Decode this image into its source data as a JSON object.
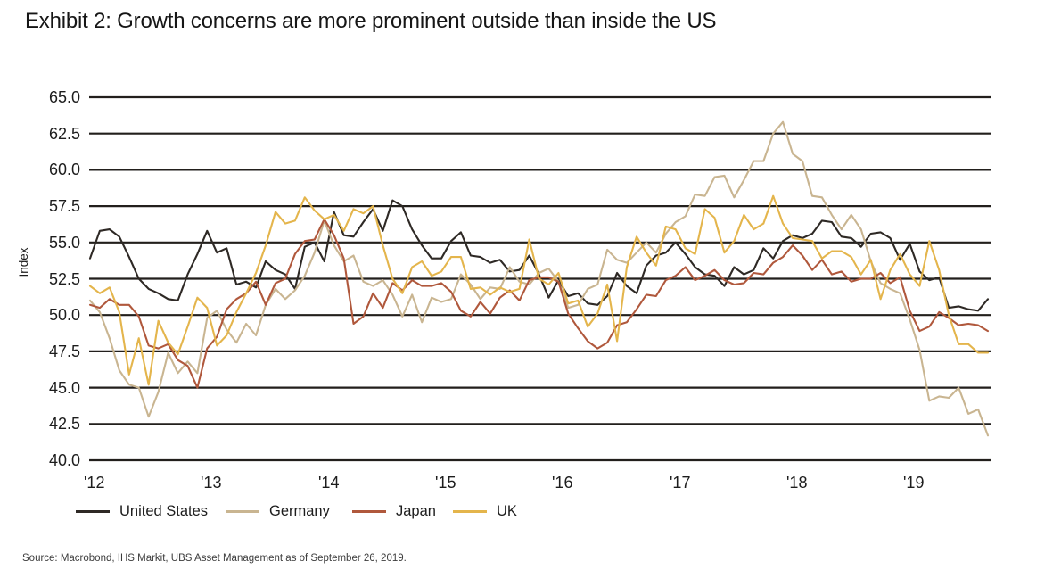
{
  "title": "Exhibit 2: Growth concerns are more prominent outside than inside the US",
  "source": "Source: Macrobond, IHS Markit, UBS Asset Management as of September 26, 2019.",
  "chart_data": {
    "type": "line",
    "title": "Exhibit 2: Growth concerns are more prominent outside than inside the US",
    "ylabel": "Index",
    "xlabel": "",
    "ylim": [
      40.0,
      65.0
    ],
    "yticks": [
      65.0,
      62.5,
      60.0,
      57.5,
      55.0,
      52.5,
      50.0,
      47.5,
      45.0,
      42.5,
      40.0
    ],
    "xtick_labels": [
      "'12",
      "'13",
      "'14",
      "'15",
      "'16",
      "'17",
      "'18",
      "'19"
    ],
    "x_frequency": "monthly, Jan 2012 - Sep 2019",
    "grid": "horizontal gridlines on",
    "gridline_color": "#221f1c",
    "legend_position": "below chart",
    "series": [
      {
        "name": "United States",
        "color": "#2e2925",
        "values": [
          53.9,
          55.8,
          55.9,
          55.4,
          54.0,
          52.5,
          51.8,
          51.5,
          51.1,
          51.0,
          52.8,
          54.2,
          55.8,
          54.3,
          54.6,
          52.1,
          52.3,
          51.9,
          53.7,
          53.1,
          52.8,
          51.8,
          54.7,
          55.0,
          53.7,
          57.1,
          55.5,
          55.4,
          56.4,
          57.3,
          55.8,
          57.9,
          57.5,
          55.9,
          54.8,
          53.9,
          53.9,
          55.1,
          55.7,
          54.1,
          54.0,
          53.6,
          53.8,
          53.0,
          53.1,
          54.1,
          52.8,
          51.2,
          52.4,
          51.3,
          51.5,
          50.8,
          50.7,
          51.3,
          52.9,
          52.0,
          51.5,
          53.4,
          54.1,
          54.3,
          55.0,
          54.2,
          53.3,
          52.8,
          52.7,
          52.0,
          53.3,
          52.8,
          53.1,
          54.6,
          53.9,
          55.1,
          55.5,
          55.3,
          55.6,
          56.5,
          56.4,
          55.4,
          55.3,
          54.7,
          55.6,
          55.7,
          55.3,
          53.8,
          54.9,
          53.0,
          52.4,
          52.6,
          50.5,
          50.6,
          50.4,
          50.3,
          51.1
        ]
      },
      {
        "name": "Germany",
        "color": "#c9b591",
        "values": [
          51.0,
          50.2,
          48.4,
          46.2,
          45.2,
          45.0,
          43.0,
          44.7,
          47.4,
          46.0,
          46.8,
          46.0,
          49.8,
          50.3,
          49.0,
          48.1,
          49.4,
          48.6,
          50.7,
          51.8,
          51.1,
          51.7,
          52.7,
          54.3,
          56.5,
          54.8,
          53.7,
          54.1,
          52.3,
          52.0,
          52.4,
          51.4,
          49.9,
          51.4,
          49.5,
          51.2,
          50.9,
          51.1,
          52.8,
          52.1,
          51.1,
          51.9,
          51.8,
          53.3,
          52.3,
          52.1,
          52.9,
          53.2,
          52.3,
          50.5,
          50.7,
          51.8,
          52.1,
          54.5,
          53.8,
          53.6,
          54.3,
          55.0,
          54.3,
          55.6,
          56.4,
          56.8,
          58.3,
          58.2,
          59.5,
          59.6,
          58.1,
          59.3,
          60.6,
          60.6,
          62.5,
          63.3,
          61.1,
          60.6,
          58.2,
          58.1,
          56.9,
          55.9,
          56.9,
          55.9,
          53.7,
          52.2,
          51.8,
          51.5,
          49.7,
          47.6,
          44.1,
          44.4,
          44.3,
          45.0,
          43.2,
          43.5,
          41.7
        ]
      },
      {
        "name": "Japan",
        "color": "#b0583c",
        "values": [
          50.7,
          50.5,
          51.1,
          50.7,
          50.7,
          49.9,
          47.9,
          47.7,
          48.0,
          46.9,
          46.5,
          45.0,
          47.7,
          48.5,
          50.4,
          51.1,
          51.5,
          52.3,
          50.7,
          52.2,
          52.5,
          54.2,
          55.1,
          55.2,
          56.6,
          55.5,
          53.9,
          49.4,
          49.9,
          51.5,
          50.5,
          52.2,
          51.7,
          52.4,
          52.0,
          52.0,
          52.2,
          51.6,
          50.3,
          49.9,
          50.9,
          50.1,
          51.2,
          51.7,
          51.0,
          52.4,
          52.6,
          52.6,
          52.3,
          50.1,
          49.1,
          48.2,
          47.7,
          48.1,
          49.3,
          49.5,
          50.4,
          51.4,
          51.3,
          52.4,
          52.7,
          53.3,
          52.4,
          52.7,
          53.1,
          52.4,
          52.1,
          52.2,
          52.9,
          52.8,
          53.6,
          54.0,
          54.8,
          54.1,
          53.1,
          53.8,
          52.8,
          53.0,
          52.3,
          52.5,
          52.5,
          52.9,
          52.2,
          52.6,
          50.3,
          48.9,
          49.2,
          50.2,
          49.8,
          49.3,
          49.4,
          49.3,
          48.9
        ]
      },
      {
        "name": "UK",
        "color": "#e4b54c",
        "values": [
          52.0,
          51.5,
          51.9,
          50.2,
          45.9,
          48.4,
          45.2,
          49.6,
          48.1,
          47.3,
          49.2,
          51.2,
          50.5,
          47.9,
          48.6,
          50.2,
          51.5,
          52.9,
          54.8,
          57.1,
          56.3,
          56.5,
          58.1,
          57.2,
          56.6,
          56.9,
          55.8,
          57.3,
          57.0,
          57.5,
          54.8,
          52.5,
          51.5,
          53.3,
          53.7,
          52.7,
          53.0,
          54.0,
          54.0,
          51.8,
          51.9,
          51.4,
          51.9,
          51.6,
          51.8,
          55.2,
          52.5,
          52.1,
          52.9,
          50.8,
          51.0,
          49.2,
          50.1,
          52.1,
          48.2,
          53.3,
          55.4,
          54.3,
          53.4,
          56.1,
          55.9,
          54.6,
          54.2,
          57.3,
          56.7,
          54.3,
          55.1,
          56.9,
          55.9,
          56.3,
          58.2,
          56.3,
          55.3,
          55.2,
          55.1,
          53.9,
          54.4,
          54.4,
          54.0,
          52.8,
          53.8,
          51.1,
          53.1,
          54.2,
          52.8,
          52.0,
          55.1,
          53.1,
          50.0,
          48.0,
          48.0,
          47.4,
          47.4
        ]
      }
    ]
  }
}
